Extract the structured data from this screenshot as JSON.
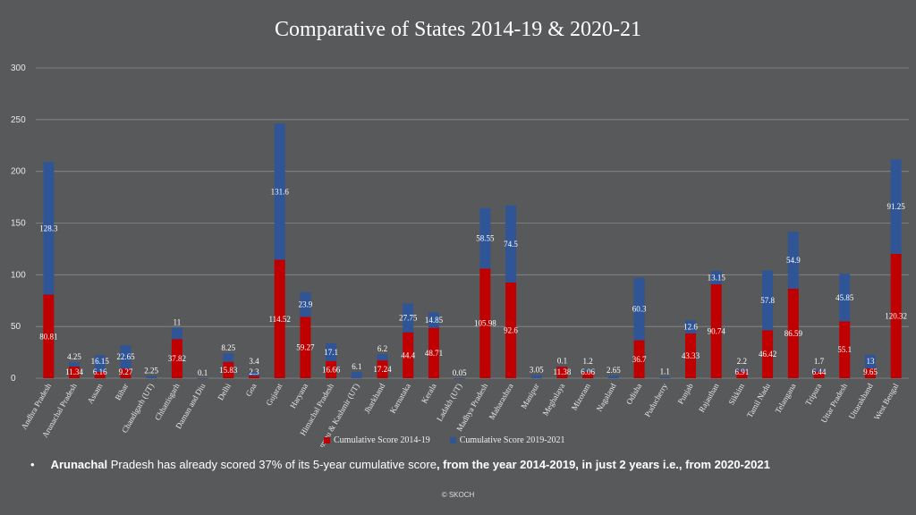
{
  "chart_data": {
    "type": "bar",
    "stacked": true,
    "title": "Comparative of States 2014-19 & 2020-21",
    "xlabel": "",
    "ylabel": "",
    "ylim": [
      0,
      300
    ],
    "yticks": [
      "0",
      "50",
      "100",
      "150",
      "200",
      "250",
      "300"
    ],
    "grid": true,
    "legend_position": "bottom",
    "categories": [
      "Andhra Pradesh",
      "Arunachal Pradesh",
      "Assam",
      "Bihar",
      "Chandigarh (UT)",
      "Chhattisgarh",
      "Daman and Diu",
      "Delhi",
      "Goa",
      "Gujarat",
      "Haryana",
      "Himachal Pradesh",
      "Jammu & Kashmir (UT)",
      "Jharkhand",
      "Karnataka",
      "Kerala",
      "Ladakh (UT)",
      "Madhya Pradesh",
      "Maharashtra",
      "Manipur",
      "Meghalaya",
      "Mizoram",
      "Nagaland",
      "Odisha",
      "Puducherry",
      "Punjab",
      "Rajasthan",
      "Sikkim",
      "Tamil Nadu",
      "Telangana",
      "Tripura",
      "Uttar Pradesh",
      "Uttarakhand",
      "West Bengal"
    ],
    "series": [
      {
        "name": "Cumulative Score 2014-19",
        "color": "#c00000",
        "values": [
          80.81,
          11.34,
          6.16,
          9.27,
          0,
          37.82,
          0,
          15.83,
          2.3,
          114.52,
          59.27,
          16.66,
          0,
          17.24,
          44.4,
          48.71,
          0,
          105.98,
          92.6,
          0,
          11.38,
          6.06,
          0,
          36.7,
          0,
          43.33,
          90.74,
          6.91,
          46.42,
          86.59,
          6.44,
          55.1,
          9.65,
          120.32
        ],
        "labels": [
          "80.81",
          "11.34",
          "6.16",
          "9.27",
          "",
          "37.82",
          "",
          "15.83",
          "2.3",
          "114.52",
          "59.27",
          "16.66",
          "",
          "17.24",
          "44.4",
          "48.71",
          "",
          "105.98",
          "92.6",
          "",
          "11.38",
          "6.06",
          "",
          "36.7",
          "",
          "43.33",
          "90.74",
          "6.91",
          "46.42",
          "86.59",
          "6.44",
          "55.1",
          "9.65",
          "120.32"
        ]
      },
      {
        "name": "Cumulative Score 2019-2021",
        "color": "#2f5597",
        "values": [
          128.3,
          4.25,
          16.15,
          22.65,
          2.25,
          11,
          0.1,
          8.25,
          3.4,
          131.6,
          23.9,
          17.1,
          6.1,
          6.2,
          27.75,
          14.85,
          0.05,
          58.55,
          74.5,
          3.05,
          0.1,
          1.2,
          2.65,
          60.3,
          1.1,
          12.6,
          13.15,
          2.2,
          57.8,
          54.9,
          1.7,
          45.85,
          13,
          91.25
        ],
        "labels": [
          "128.3",
          "4.25",
          "16.15",
          "22.65",
          "2.25",
          "11",
          "0.1",
          "8.25",
          "3.4",
          "131.6",
          "23.9",
          "17.1",
          "6.1",
          "6.2",
          "27.75",
          "14.85",
          "0.05",
          "58.55",
          "74.5",
          "3.05",
          "0.1",
          "1.2",
          "2.65",
          "60.3",
          "1.1",
          "12.6",
          "13.15",
          "2.2",
          "57.8",
          "54.9",
          "1.7",
          "45.85",
          "13",
          "91.25"
        ]
      }
    ]
  },
  "note": {
    "bullet": "•",
    "state": "Arunachal",
    "part1": " Pradesh has already scored 37% of its 5-year cumulative score",
    "part2": ", from the year 2014-2019,  in just 2 years i.e., from 2020-2021"
  },
  "footer": "© SKOCH",
  "colors": {
    "background": "#58595b",
    "grid": "#8a8a8a"
  }
}
